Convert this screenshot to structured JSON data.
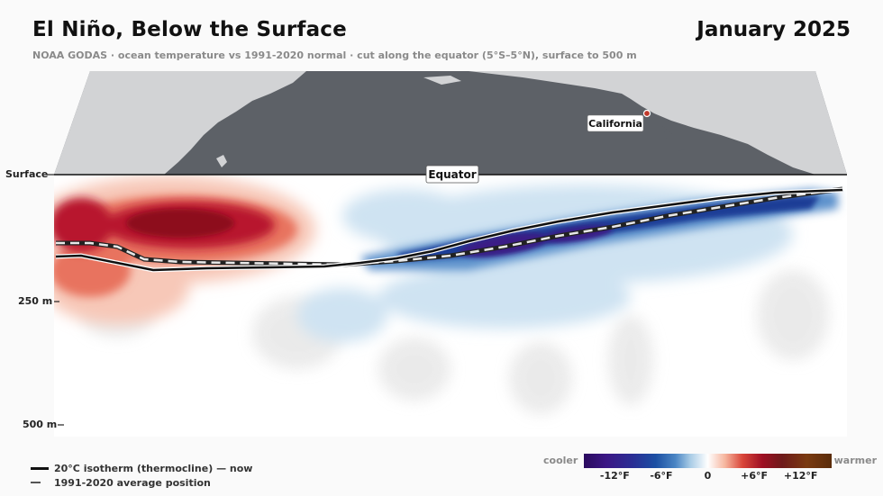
{
  "header": {
    "title": "El Niño, Below the Surface",
    "date": "January 2025",
    "subtitle": "NOAA GODAS · ocean temperature vs 1991-2020 normal · cut along the equator (5°S–5°N), surface to 500 m"
  },
  "map": {
    "labels": {
      "california": "California",
      "equator": "Equator"
    },
    "colors": {
      "land": "#d2d3d5",
      "ocean": "#5d6167"
    }
  },
  "depth_axis": {
    "labels": [
      "Surface",
      "250 m",
      "500 m"
    ],
    "values_m": [
      0,
      250,
      500
    ]
  },
  "legend": {
    "now_label": "20°C isotherm (thermocline) — now",
    "avg_label": "1991-2020 average position"
  },
  "colorbar": {
    "cool_label": "cooler",
    "warm_label": "warmer",
    "ticks": [
      "-12°F",
      "-6°F",
      "0",
      "+6°F",
      "+12°F"
    ],
    "tick_values_f": [
      -12,
      -6,
      0,
      6,
      12
    ],
    "range_f": [
      -16,
      16
    ]
  },
  "anomaly": {
    "warm_color": "#a00d22",
    "cool_color": "#1a2c8f",
    "deep_cool_color": "#3a1a85"
  }
}
